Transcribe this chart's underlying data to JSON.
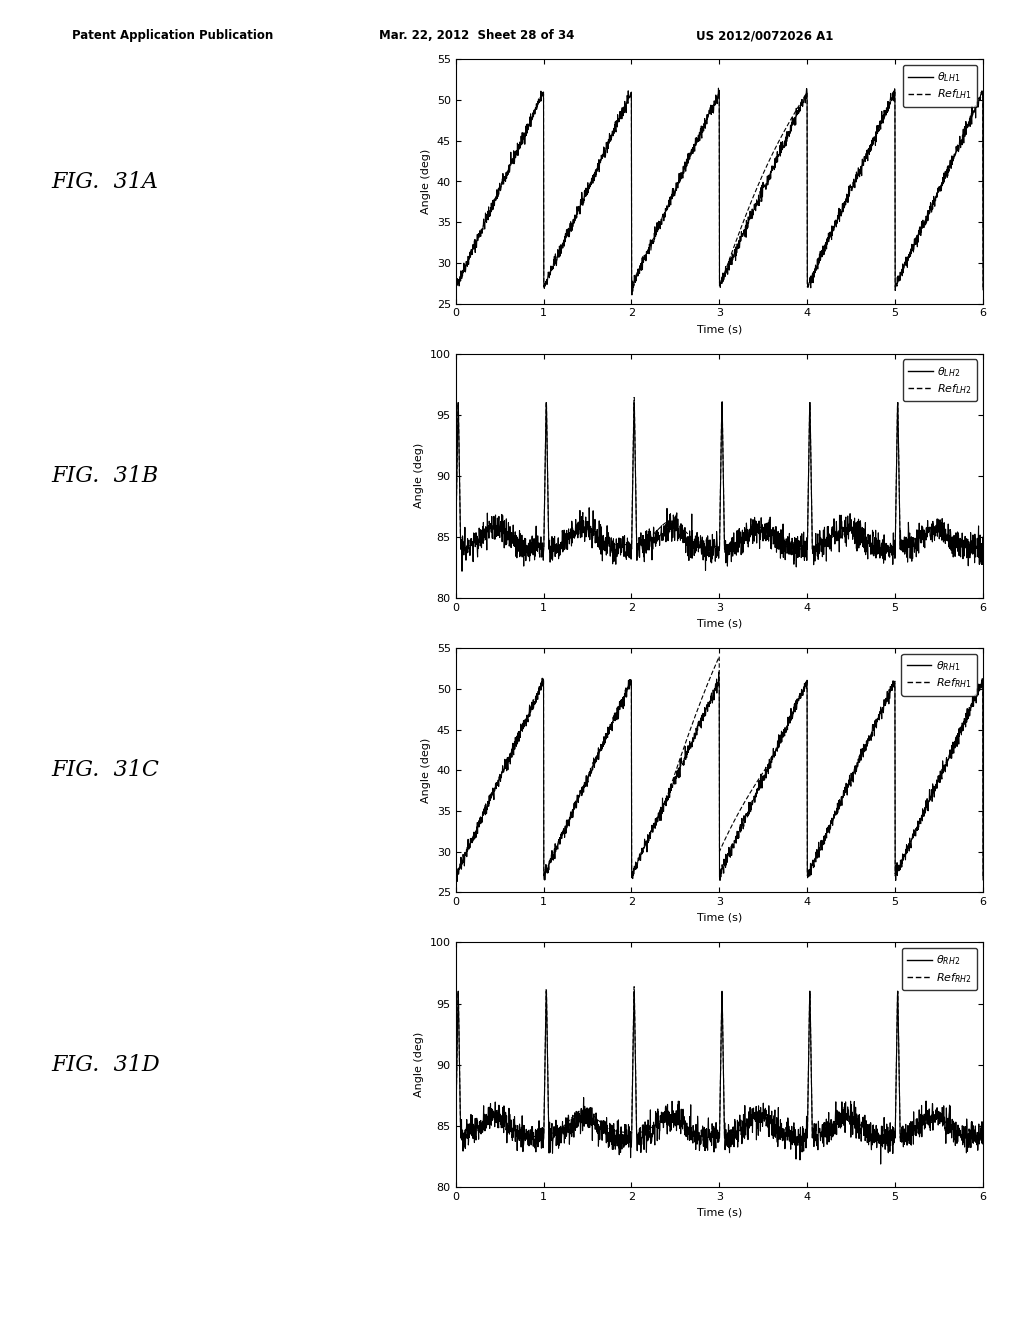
{
  "fig_width": 10.24,
  "fig_height": 13.2,
  "background_color": "#ffffff",
  "header_text": "Patent Application Publication",
  "header_date": "Mar. 22, 2012  Sheet 28 of 34",
  "header_patent": "US 2012/0072026 A1",
  "plots": [
    {
      "fig_label": "FIG.  31A",
      "ylabel": "Angle (deg)",
      "xlabel": "Time (s)",
      "ylim": [
        25,
        55
      ],
      "yticks": [
        25,
        30,
        35,
        40,
        45,
        50,
        55
      ],
      "xlim": [
        0,
        6
      ],
      "xticks": [
        0,
        1,
        2,
        3,
        4,
        5,
        6
      ],
      "legend_key": "LH1",
      "signal_type": "sawtooth_up",
      "base": 27,
      "peak": 51,
      "period": 1.0,
      "noise_amplitude": 0.4
    },
    {
      "fig_label": "FIG.  31B",
      "ylabel": "Angle (deg)",
      "xlabel": "Time (s)",
      "ylim": [
        80,
        100
      ],
      "yticks": [
        80,
        85,
        90,
        95,
        100
      ],
      "xlim": [
        0,
        6
      ],
      "xticks": [
        0,
        1,
        2,
        3,
        4,
        5,
        6
      ],
      "legend_key": "LH2",
      "signal_type": "spike_base",
      "base": 84,
      "peak": 96,
      "period": 1.0,
      "noise_amplitude": 0.6
    },
    {
      "fig_label": "FIG.  31C",
      "ylabel": "Angle (deg)",
      "xlabel": "Time (s)",
      "ylim": [
        25,
        55
      ],
      "yticks": [
        25,
        30,
        35,
        40,
        45,
        50,
        55
      ],
      "xlim": [
        0,
        6
      ],
      "xticks": [
        0,
        1,
        2,
        3,
        4,
        5,
        6
      ],
      "legend_key": "RH1",
      "signal_type": "sawtooth_up",
      "base": 27,
      "peak": 51,
      "period": 1.0,
      "noise_amplitude": 0.4
    },
    {
      "fig_label": "FIG.  31D",
      "ylabel": "Angle (deg)",
      "xlabel": "Time (s)",
      "ylim": [
        80,
        100
      ],
      "yticks": [
        80,
        85,
        90,
        95,
        100
      ],
      "xlim": [
        0,
        6
      ],
      "xticks": [
        0,
        1,
        2,
        3,
        4,
        5,
        6
      ],
      "legend_key": "RH2",
      "signal_type": "spike_base",
      "base": 84,
      "peak": 96,
      "period": 1.0,
      "noise_amplitude": 0.6
    }
  ]
}
